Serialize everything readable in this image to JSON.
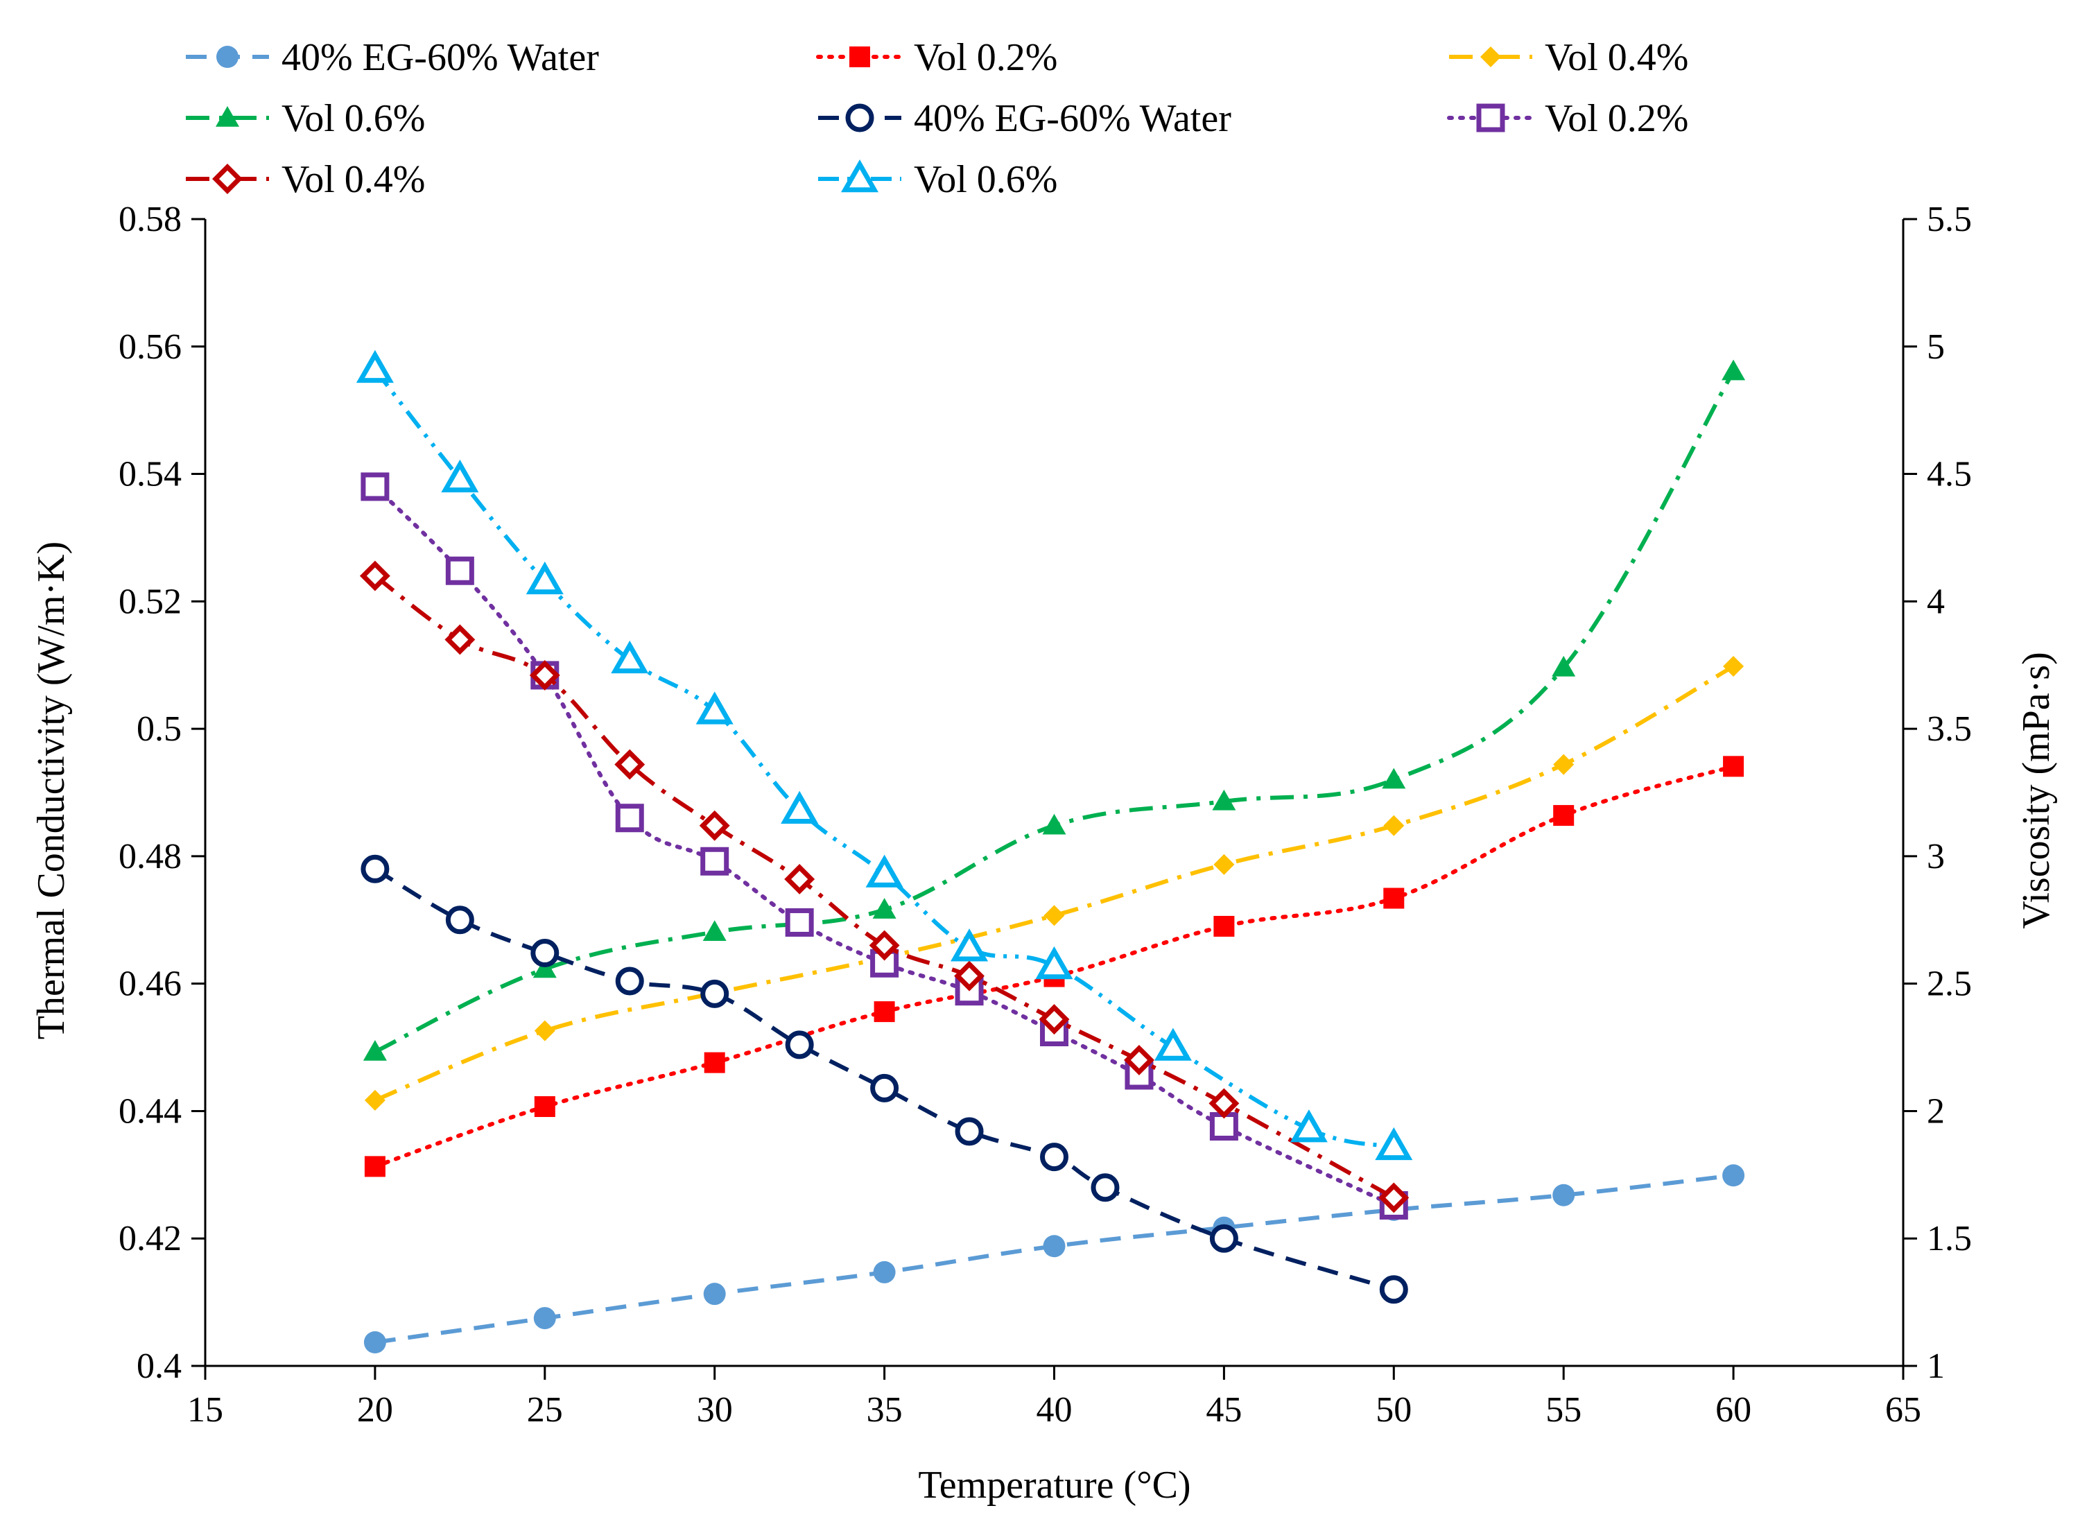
{
  "chart_data": {
    "type": "line",
    "title": "",
    "xlabel": "Temperature (°C)",
    "ylabel": "Thermal Conductivity (W/m·K)",
    "y2label": "Viscosity (mPa·s)",
    "xlim": [
      15,
      65
    ],
    "ylim": [
      0.4,
      0.58
    ],
    "y2lim": [
      1,
      5.5
    ],
    "x_ticks": [
      "15",
      "20",
      "25",
      "30",
      "35",
      "40",
      "45",
      "50",
      "55",
      "60",
      "65"
    ],
    "y_ticks": [
      "0.4",
      "0.42",
      "0.44",
      "0.46",
      "0.48",
      "0.5",
      "0.52",
      "0.54",
      "0.56",
      "0.58"
    ],
    "y2_ticks": [
      "1",
      "1.5",
      "2",
      "2.5",
      "3",
      "3.5",
      "4",
      "4.5",
      "5",
      "5.5"
    ],
    "grid": false,
    "legend_position": "top",
    "series": [
      {
        "name": "40% EG-60% Water",
        "axis": "left",
        "color": "#5B9BD5",
        "dash": "dashed",
        "marker": "circle-filled",
        "x": [
          20,
          25,
          30,
          35,
          40,
          45,
          50,
          55,
          60
        ],
        "y": [
          0.4037,
          0.4075,
          0.4113,
          0.4147,
          0.4188,
          0.4217,
          0.4245,
          0.4268,
          0.4299
        ]
      },
      {
        "name": "Vol 0.2%",
        "axis": "left",
        "color": "#FF0000",
        "dash": "dotted",
        "marker": "square-filled",
        "x": [
          20,
          25,
          30,
          35,
          40,
          45,
          50,
          55,
          60
        ],
        "y": [
          0.4313,
          0.4407,
          0.4476,
          0.4556,
          0.4611,
          0.469,
          0.4734,
          0.4864,
          0.4941
        ]
      },
      {
        "name": "Vol 0.4%",
        "axis": "left",
        "color": "#FFC000",
        "dash": "dashdot",
        "marker": "diamond-filled",
        "x": [
          20,
          25,
          30,
          35,
          40,
          45,
          50,
          55,
          60
        ],
        "y": [
          0.4417,
          0.4526,
          0.4585,
          0.4641,
          0.4707,
          0.4787,
          0.4848,
          0.4944,
          0.5098
        ]
      },
      {
        "name": "Vol 0.6%",
        "axis": "left",
        "color": "#00B050",
        "dash": "dashdot",
        "marker": "triangle-filled",
        "x": [
          20,
          25,
          30,
          35,
          40,
          45,
          50,
          55,
          60
        ],
        "y": [
          0.4493,
          0.4623,
          0.4681,
          0.4716,
          0.4848,
          0.4886,
          0.492,
          0.5096,
          0.5561
        ]
      },
      {
        "name": "40% EG-60% Water",
        "axis": "right",
        "color": "#002060",
        "dash": "dashed",
        "marker": "circle-open",
        "x": [
          20,
          22.5,
          25,
          27.5,
          30,
          32.5,
          35,
          37.5,
          40,
          41.5,
          45,
          50
        ],
        "y": [
          2.95,
          2.75,
          2.62,
          2.51,
          2.46,
          2.26,
          2.09,
          1.92,
          1.82,
          1.7,
          1.5,
          1.3
        ]
      },
      {
        "name": "Vol 0.2%",
        "axis": "right",
        "color": "#7030A0",
        "dash": "dotted",
        "marker": "square-open",
        "x": [
          20,
          22.5,
          25,
          27.5,
          30,
          32.5,
          35,
          37.5,
          40,
          42.5,
          45,
          50
        ],
        "y": [
          4.45,
          4.12,
          3.71,
          3.15,
          2.98,
          2.74,
          2.58,
          2.47,
          2.31,
          2.14,
          1.94,
          1.63
        ]
      },
      {
        "name": "Vol 0.4%",
        "axis": "right",
        "color": "#C00000",
        "dash": "dashdot",
        "marker": "diamond-open",
        "x": [
          20,
          22.5,
          25,
          27.5,
          30,
          32.5,
          35,
          37.5,
          40,
          42.5,
          45,
          50
        ],
        "y": [
          4.1,
          3.85,
          3.71,
          3.36,
          3.12,
          2.91,
          2.65,
          2.53,
          2.36,
          2.2,
          2.03,
          1.66
        ]
      },
      {
        "name": "Vol 0.6%",
        "axis": "right",
        "color": "#00B0F0",
        "dash": "dashdotdot",
        "marker": "triangle-open",
        "x": [
          20,
          22.5,
          25,
          27.5,
          30,
          32.5,
          35,
          37.5,
          40,
          43.5,
          47.5,
          50
        ],
        "y": [
          4.91,
          4.48,
          4.08,
          3.77,
          3.57,
          3.18,
          2.93,
          2.64,
          2.57,
          2.25,
          1.93,
          1.86
        ]
      }
    ]
  }
}
